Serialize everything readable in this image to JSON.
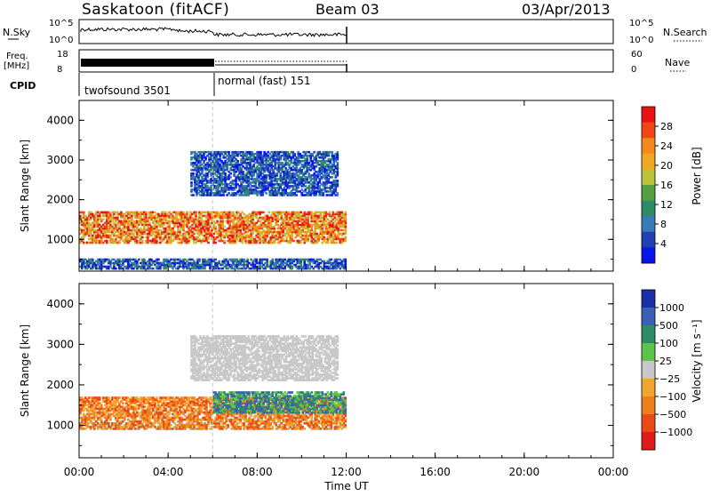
{
  "header": {
    "site": "Saskatoon (fitACF)",
    "beam": "Beam 03",
    "date": "03/Apr/2013"
  },
  "strips": {
    "nsky_label": "N.Sky",
    "nsky_ticks": [
      "10^5",
      "10^0"
    ],
    "nsearch_label": "N.Search",
    "freq_label_1": "Freq.",
    "freq_label_2": "[MHz]",
    "freq_ticks": [
      "18",
      "8"
    ],
    "nave_label": "Nave",
    "nave_ticks": [
      "60",
      "0"
    ],
    "cpid_label": "CPID",
    "modes": [
      {
        "name": "twofsound 3501",
        "start_hour": 0,
        "end_hour": 6
      },
      {
        "name": "normal (fast) 151",
        "start_hour": 6,
        "end_hour": 12
      }
    ]
  },
  "chart_data": [
    {
      "type": "heatmap",
      "title": "",
      "xlabel": "",
      "ylabel": "Slant Range [km]",
      "xlim": [
        0,
        24
      ],
      "ylim": [
        200,
        4500
      ],
      "x_ticks": [
        "00:00",
        "04:00",
        "08:00",
        "12:00",
        "16:00",
        "20:00",
        "00:00"
      ],
      "y_ticks": [
        "1000",
        "2000",
        "3000",
        "4000"
      ],
      "colorbar": {
        "label": "Power [dB]",
        "ticks": [
          "4",
          "8",
          "12",
          "16",
          "20",
          "24",
          "28"
        ],
        "range": [
          0,
          32
        ],
        "colors": [
          "#0a14e6",
          "#2040b4",
          "#3a7ab8",
          "#2f8a66",
          "#56a043",
          "#b9c43a",
          "#f0a722",
          "#f58a1c",
          "#f04616",
          "#e81414"
        ]
      },
      "data_extent_hours": [
        0,
        12
      ],
      "features": [
        {
          "kind": "band",
          "start_hour": 0,
          "end_hour": 12,
          "range_km": [
            900,
            1700
          ],
          "level": "high"
        },
        {
          "kind": "band",
          "start_hour": 5,
          "end_hour": 11.6,
          "range_km": [
            2100,
            3200
          ],
          "level": "low"
        },
        {
          "kind": "band",
          "start_hour": 0,
          "end_hour": 12,
          "range_km": [
            250,
            500
          ],
          "level": "low"
        }
      ]
    },
    {
      "type": "heatmap",
      "title": "",
      "xlabel": "Time UT",
      "ylabel": "Slant Range [km]",
      "xlim": [
        0,
        24
      ],
      "ylim": [
        200,
        4500
      ],
      "x_ticks": [
        "00:00",
        "04:00",
        "08:00",
        "12:00",
        "16:00",
        "20:00",
        "00:00"
      ],
      "y_ticks": [
        "1000",
        "2000",
        "3000",
        "4000"
      ],
      "colorbar": {
        "label": "Velocity [m s⁻¹]",
        "ticks": [
          "1000",
          "500",
          "100",
          "25",
          "−25",
          "−100",
          "−500",
          "−1000"
        ],
        "colors": [
          "#1a2fa6",
          "#3a60b4",
          "#2f8a6a",
          "#5fc24a",
          "#c8c8c8",
          "#f2a532",
          "#f07e1c",
          "#ea4a18",
          "#e01a1a"
        ]
      },
      "data_extent_hours": [
        0,
        12
      ],
      "features": [
        {
          "kind": "band",
          "start_hour": 0,
          "end_hour": 12,
          "range_km": [
            900,
            1700
          ],
          "level": "negative"
        },
        {
          "kind": "band",
          "start_hour": 5,
          "end_hour": 11.6,
          "range_km": [
            2100,
            3200
          ],
          "level": "near-zero"
        },
        {
          "kind": "band",
          "start_hour": 6,
          "end_hour": 12,
          "range_km": [
            1300,
            1800
          ],
          "level": "positive"
        }
      ]
    }
  ]
}
